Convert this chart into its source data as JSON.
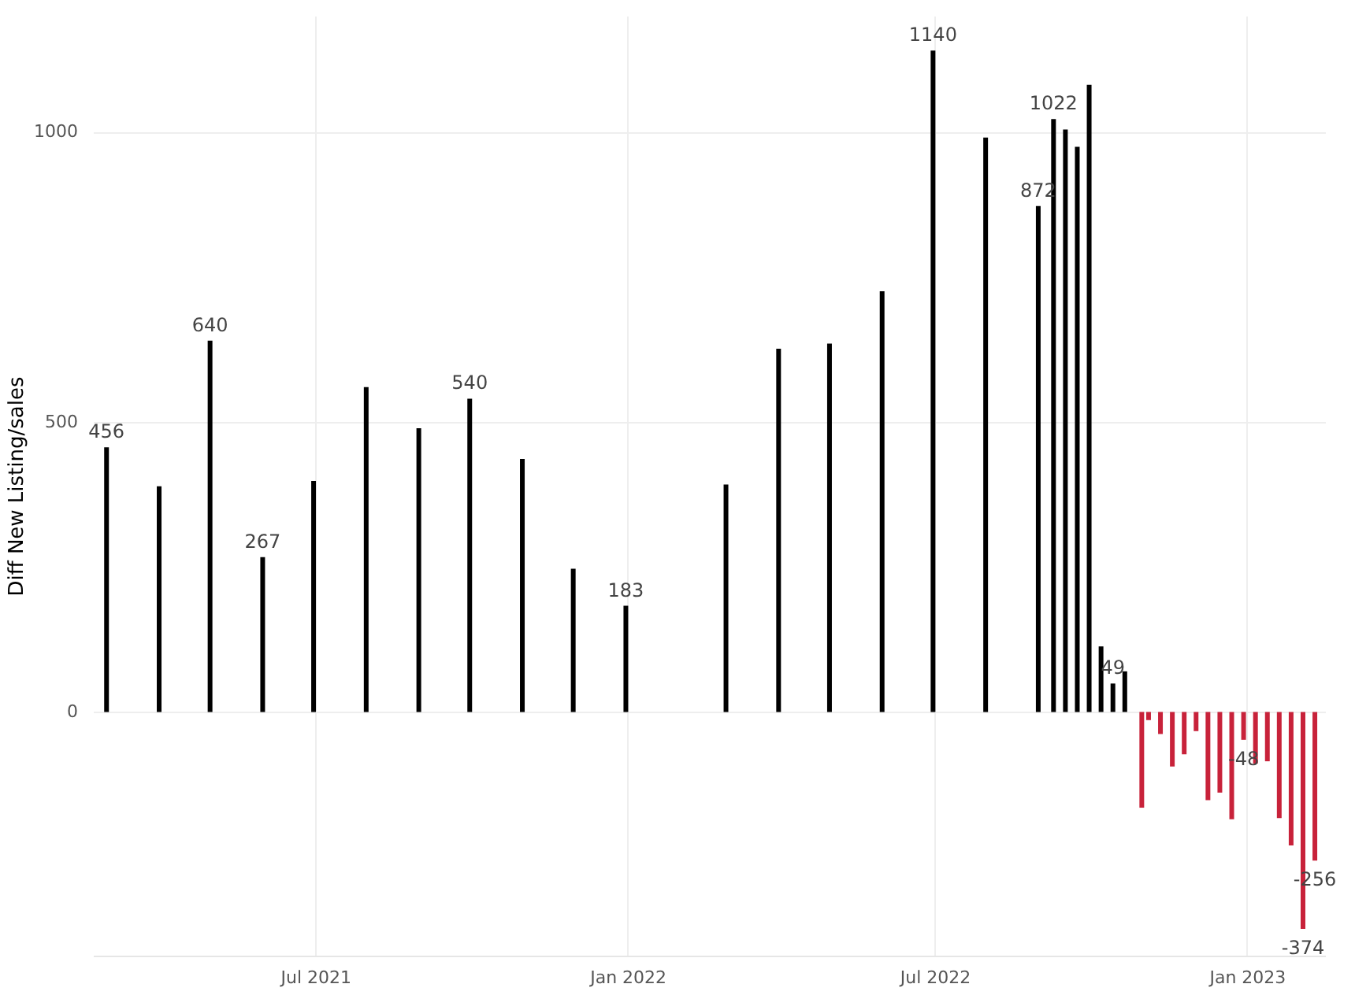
{
  "chart_data": {
    "type": "bar",
    "ylabel": "Diff New Listing/sales",
    "x": [
      "2021-02-28",
      "2021-03-31",
      "2021-04-30",
      "2021-05-31",
      "2021-06-30",
      "2021-07-31",
      "2021-08-31",
      "2021-09-30",
      "2021-10-31",
      "2021-11-30",
      "2021-12-31",
      "2022-02-28",
      "2022-03-31",
      "2022-04-30",
      "2022-05-31",
      "2022-06-30",
      "2022-07-31",
      "2022-08-31",
      "2022-09-09",
      "2022-09-16",
      "2022-09-23",
      "2022-09-30",
      "2022-10-07",
      "2022-10-14",
      "2022-10-21",
      "2022-10-31",
      "2022-11-04",
      "2022-11-11",
      "2022-11-18",
      "2022-11-25",
      "2022-12-02",
      "2022-12-09",
      "2022-12-16",
      "2022-12-23",
      "2022-12-30",
      "2023-01-06",
      "2023-01-13",
      "2023-01-20",
      "2023-01-27",
      "2023-02-03",
      "2023-02-10"
    ],
    "values": [
      456,
      389,
      640,
      267,
      398,
      560,
      489,
      540,
      436,
      247,
      183,
      392,
      626,
      635,
      725,
      1140,
      990,
      872,
      1022,
      1004,
      974,
      1081,
      113,
      49,
      70,
      -165,
      -14,
      -38,
      -94,
      -73,
      -33,
      -152,
      -139,
      -185,
      -48,
      -89,
      -85,
      -183,
      -230,
      -374,
      -256
    ],
    "value_labels": [
      "456",
      null,
      "640",
      "267",
      null,
      null,
      null,
      "540",
      null,
      null,
      "183",
      null,
      null,
      null,
      null,
      "1140",
      null,
      "872",
      "1022",
      null,
      null,
      null,
      null,
      "49",
      null,
      null,
      null,
      null,
      null,
      null,
      null,
      null,
      null,
      null,
      "-48",
      null,
      null,
      null,
      null,
      "-374",
      "-256"
    ],
    "colors": [
      "#000000",
      "#000000",
      "#000000",
      "#000000",
      "#000000",
      "#000000",
      "#000000",
      "#000000",
      "#000000",
      "#000000",
      "#000000",
      "#000000",
      "#000000",
      "#000000",
      "#000000",
      "#000000",
      "#000000",
      "#000000",
      "#000000",
      "#000000",
      "#000000",
      "#000000",
      "#000000",
      "#000000",
      "#000000",
      "#c8223a",
      "#c8223a",
      "#c8223a",
      "#c8223a",
      "#c8223a",
      "#c8223a",
      "#c8223a",
      "#c8223a",
      "#c8223a",
      "#c8223a",
      "#c8223a",
      "#c8223a",
      "#c8223a",
      "#c8223a",
      "#c8223a",
      "#c8223a"
    ],
    "xticks": [
      {
        "value": "2021-07-01",
        "label": "Jul 2021"
      },
      {
        "value": "2022-01-01",
        "label": "Jan 2022"
      },
      {
        "value": "2022-07-01",
        "label": "Jul 2022"
      },
      {
        "value": "2023-01-01",
        "label": "Jan 2023"
      }
    ],
    "xlim": [
      "2021-02-20",
      "2023-02-16"
    ],
    "ylim": [
      -420,
      1200
    ],
    "yticks": [
      0,
      500,
      1000
    ],
    "grid": true
  }
}
